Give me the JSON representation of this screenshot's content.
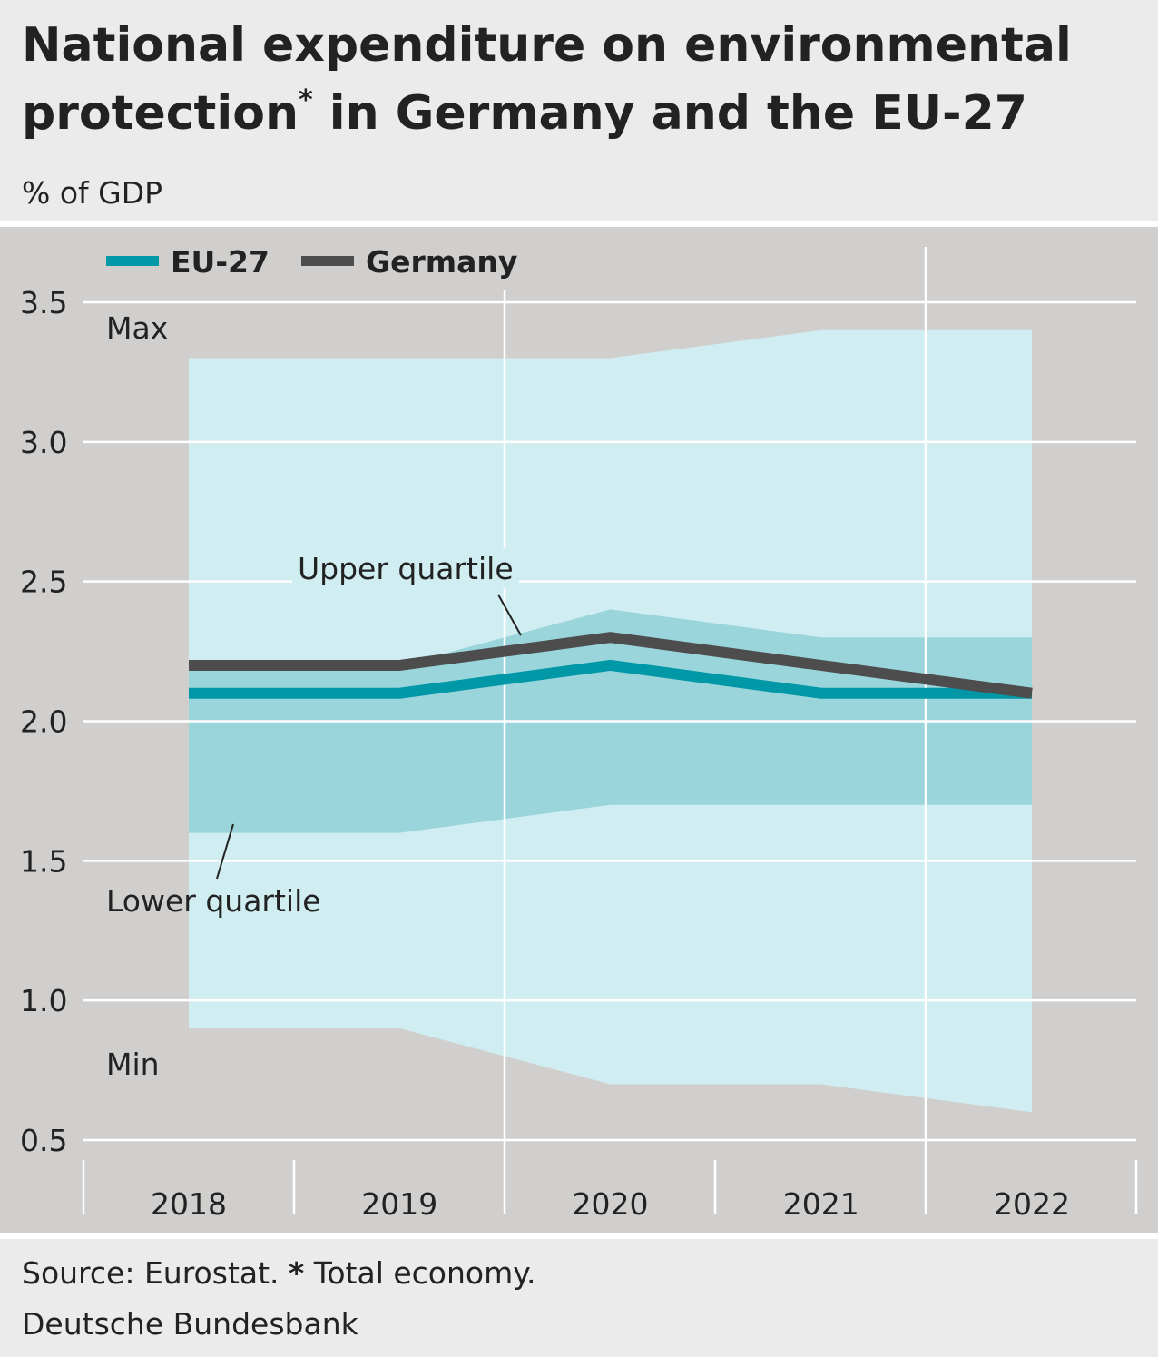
{
  "chart_data": {
    "type": "area",
    "title": "National expenditure on environmental protection",
    "title_line1": "National expenditure on environmental",
    "title_line2_a": "protection",
    "title_marker": "*",
    "title_line2_b": " in Germany and the EU-27",
    "subtitle": "% of GDP",
    "categories": [
      "2018",
      "2019",
      "2020",
      "2021",
      "2022"
    ],
    "ylim": [
      0.5,
      3.5
    ],
    "yticks": [
      "0.5",
      "1.0",
      "1.5",
      "2.0",
      "2.5",
      "3.0",
      "3.5"
    ],
    "grid": true,
    "legend_position": "top-left",
    "bands": {
      "max": [
        3.3,
        3.3,
        3.3,
        3.4,
        3.4
      ],
      "upper_quartile": [
        2.2,
        2.2,
        2.4,
        2.3,
        2.3
      ],
      "lower_quartile": [
        1.6,
        1.6,
        1.7,
        1.7,
        1.7
      ],
      "min": [
        0.9,
        0.9,
        0.7,
        0.7,
        0.6
      ]
    },
    "series": [
      {
        "name": "EU-27",
        "values": [
          2.1,
          2.1,
          2.2,
          2.1,
          2.1
        ],
        "color": "#0097a6"
      },
      {
        "name": "Germany",
        "values": [
          2.2,
          2.2,
          2.3,
          2.2,
          2.1
        ],
        "color": "#4d4d4d"
      }
    ],
    "annotations": {
      "max": "Max",
      "min": "Min",
      "upper": "Upper quartile",
      "lower": "Lower quartile"
    },
    "colors": {
      "outer_band": "#d0eef1",
      "inner_band": "#9ad5dc",
      "plot_bg": "#d0cfcd",
      "header_bg": "#ebebeb"
    }
  },
  "footer": {
    "source_a": "Source: Eurostat. ",
    "source_marker": "*",
    "source_b": " Total economy.",
    "publisher": "Deutsche Bundesbank"
  }
}
